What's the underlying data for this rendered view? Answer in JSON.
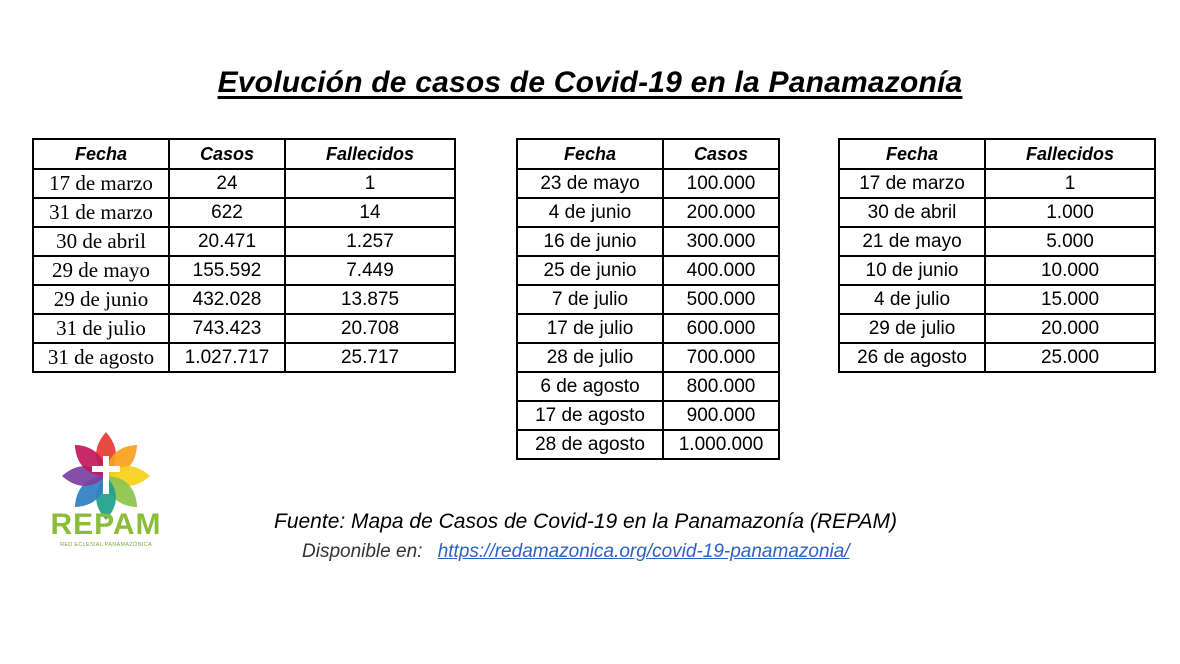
{
  "title": "Evolución de casos de Covid-19 en la Panamazonía",
  "table1": {
    "headers": [
      "Fecha",
      "Casos",
      "Fallecidos"
    ],
    "rows": [
      [
        "17 de marzo",
        "24",
        "1"
      ],
      [
        "31 de marzo",
        "622",
        "14"
      ],
      [
        "30 de abril",
        "20.471",
        "1.257"
      ],
      [
        "29 de mayo",
        "155.592",
        "7.449"
      ],
      [
        "29 de junio",
        "432.028",
        "13.875"
      ],
      [
        "31 de julio",
        "743.423",
        "20.708"
      ],
      [
        "31 de agosto",
        "1.027.717",
        "25.717"
      ]
    ]
  },
  "table2": {
    "headers": [
      "Fecha",
      "Casos"
    ],
    "rows": [
      [
        "23 de mayo",
        "100.000"
      ],
      [
        "4 de junio",
        "200.000"
      ],
      [
        "16 de junio",
        "300.000"
      ],
      [
        "25 de junio",
        "400.000"
      ],
      [
        "7 de julio",
        "500.000"
      ],
      [
        "17 de julio",
        "600.000"
      ],
      [
        "28 de julio",
        "700.000"
      ],
      [
        "6 de agosto",
        "800.000"
      ],
      [
        "17 de agosto",
        "900.000"
      ],
      [
        "28 de agosto",
        "1.000.000"
      ]
    ]
  },
  "table3": {
    "headers": [
      "Fecha",
      "Fallecidos"
    ],
    "rows": [
      [
        "17 de marzo",
        "1"
      ],
      [
        "30 de abril",
        "1.000"
      ],
      [
        "21 de mayo",
        "5.000"
      ],
      [
        "10 de junio",
        "10.000"
      ],
      [
        "4 de julio",
        "15.000"
      ],
      [
        "29 de julio",
        "20.000"
      ],
      [
        "26 de agosto",
        "25.000"
      ]
    ]
  },
  "logo": {
    "name": "REPAM",
    "subtitle": "RED ECLESIAL PANAMAZÓNICA",
    "colors": [
      "#e53935",
      "#f7a21b",
      "#f6d11a",
      "#8bc34a",
      "#1f9e8a",
      "#2f7fc1",
      "#7b3fa0",
      "#c2185b"
    ]
  },
  "source": {
    "line": "Fuente: Mapa de Casos de Covid-19 en la Panamazonía (REPAM)",
    "available_label": "Disponible en:",
    "link": "https://redamazonica.org/covid-19-panamazonia/"
  }
}
